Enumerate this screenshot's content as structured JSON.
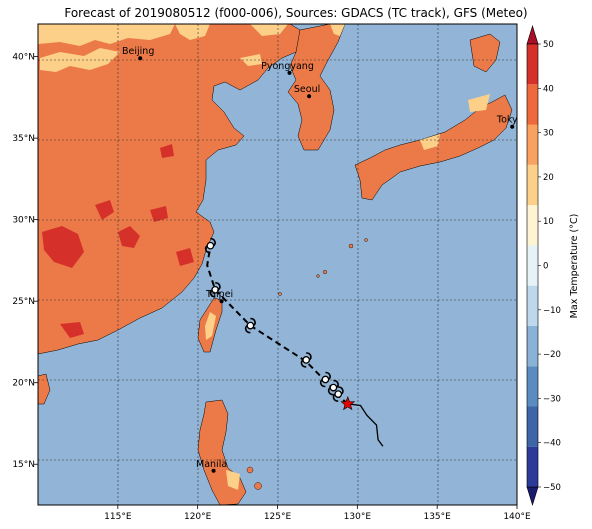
{
  "title": "Forecast of 2019080512 (f000-006), Sources: GDACS (TC track), GFS (Meteo)",
  "map": {
    "lon_range": [
      110,
      140
    ],
    "lat_range": [
      12.5,
      42
    ],
    "lon_ticks": [
      "115°E",
      "120°E",
      "125°E",
      "130°E",
      "135°E",
      "140°E"
    ],
    "lat_ticks": [
      "15°N",
      "20°N",
      "25°N",
      "30°N",
      "35°N",
      "40°N"
    ],
    "gridlines": true,
    "cities": [
      {
        "name": "Beijing",
        "lon": 116.4,
        "lat": 39.9
      },
      {
        "name": "Pyongyang",
        "lon": 125.75,
        "lat": 39.0
      },
      {
        "name": "Seoul",
        "lon": 126.98,
        "lat": 37.57
      },
      {
        "name": "Tokyo",
        "lon": 139.7,
        "lat": 35.7
      },
      {
        "name": "Taipei",
        "lon": 121.5,
        "lat": 25.0
      },
      {
        "name": "Manila",
        "lon": 121.0,
        "lat": 14.6
      }
    ],
    "ocean_color": "#92b4d6",
    "land_color": "#ec7a48"
  },
  "track": {
    "past": [
      [
        131.6,
        16.1
      ],
      [
        131.3,
        16.5
      ],
      [
        131.2,
        17.4
      ],
      [
        130.6,
        18.0
      ],
      [
        130.2,
        18.6
      ],
      [
        129.4,
        18.7
      ]
    ],
    "forecast": [
      [
        129.4,
        18.7
      ],
      [
        128.8,
        19.2
      ],
      [
        128.4,
        19.7
      ],
      [
        127.9,
        20.2
      ],
      [
        126.8,
        21.3
      ],
      [
        123.3,
        23.5
      ],
      [
        121.1,
        25.7
      ],
      [
        120.6,
        27.2
      ],
      [
        120.8,
        28.4
      ]
    ],
    "symbols": [
      [
        128.8,
        19.3
      ],
      [
        128.5,
        19.7
      ],
      [
        128.0,
        20.2
      ],
      [
        126.8,
        21.4
      ],
      [
        123.3,
        23.5
      ],
      [
        121.1,
        25.7
      ],
      [
        120.8,
        28.4
      ]
    ],
    "current_position": [
      129.4,
      18.7
    ],
    "current_color": "#e60000"
  },
  "colorbar": {
    "label": "Max Temperature (°C)",
    "ticks": [
      "−50",
      "−40",
      "−30",
      "−20",
      "−10",
      "0",
      "10",
      "20",
      "30",
      "40",
      "50"
    ],
    "colors": [
      "#1a1a6e",
      "#2c3a9a",
      "#3d65a8",
      "#5b8cc1",
      "#8ab2d6",
      "#bcd8ea",
      "#e6f2f7",
      "#fff4d1",
      "#fdd08a",
      "#f9a15e",
      "#ee6a3c",
      "#d6302a",
      "#a90f26"
    ]
  }
}
